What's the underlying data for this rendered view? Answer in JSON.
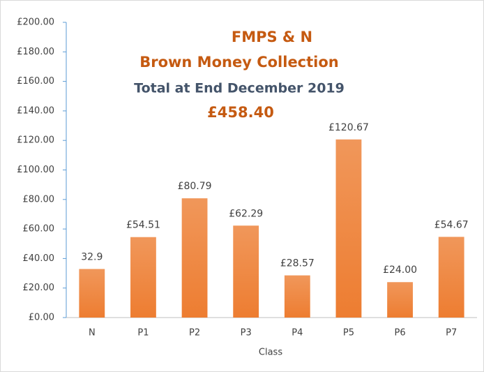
{
  "chart_data": {
    "type": "bar",
    "title_lines": [
      "FMPS & N",
      "Brown Money Collection",
      "Total at End December 2019",
      "£458.40"
    ],
    "x_label": "Class",
    "categories": [
      "N",
      "P1",
      "P2",
      "P3",
      "P4",
      "P5",
      "P6",
      "P7"
    ],
    "values": [
      32.9,
      54.51,
      80.79,
      62.29,
      28.57,
      120.67,
      24.0,
      54.67
    ],
    "value_labels": [
      "32.9",
      "£54.51",
      "£80.79",
      "£62.29",
      "£28.57",
      "£120.67",
      "£24.00",
      "£54.67"
    ],
    "color": "#ed7d31",
    "ylim": [
      0,
      200
    ],
    "yticks": [
      {
        "value": 0,
        "label": "£0.00"
      },
      {
        "value": 20,
        "label": "£20.00"
      },
      {
        "value": 40,
        "label": "£40.00"
      },
      {
        "value": 60,
        "label": "£60.00"
      },
      {
        "value": 80,
        "label": "£80.00"
      },
      {
        "value": 100,
        "label": "£100.00"
      },
      {
        "value": 120,
        "label": "£120.00"
      },
      {
        "value": 140,
        "label": "£140.00"
      },
      {
        "value": 160,
        "label": "£160.00"
      },
      {
        "value": 180,
        "label": "£180.00"
      },
      {
        "value": 200,
        "label": "£200.00"
      }
    ]
  }
}
